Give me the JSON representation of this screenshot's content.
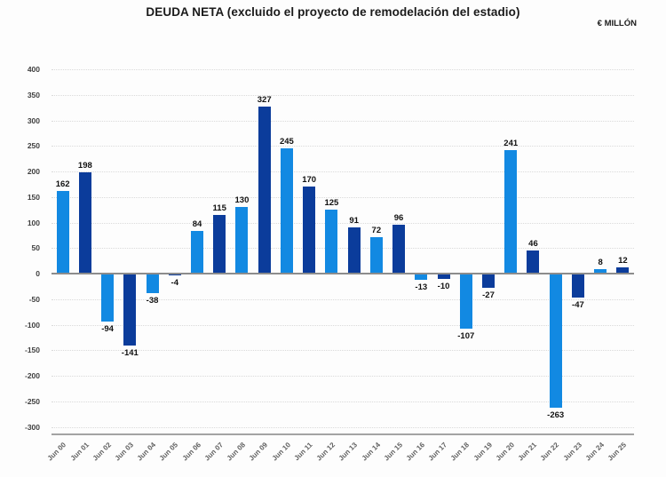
{
  "chart_data": {
    "type": "bar",
    "title": "DEUDA NETA (excluido el proyecto de remodelación del estadio)",
    "units": "€ MILLÓN",
    "categories": [
      "Jun 00",
      "Jun 01",
      "Jun 02",
      "Jun 03",
      "Jun 04",
      "Jun 05",
      "Jun 06",
      "Jun 07",
      "Jun 08",
      "Jun 09",
      "Jun 10",
      "Jun 11",
      "Jun 12",
      "Jun 13",
      "Jun 14",
      "Jun 15",
      "Jun 16",
      "Jun 17",
      "Jun 18",
      "Jun 19",
      "Jun 20",
      "Jun 21",
      "Jun 22",
      "Jun 23",
      "Jun 24",
      "Jun 25"
    ],
    "values": [
      162,
      198,
      -94,
      -141,
      -38,
      -4,
      84,
      115,
      130,
      327,
      245,
      170,
      125,
      91,
      72,
      96,
      -13,
      -10,
      -107,
      -27,
      241,
      46,
      -263,
      -47,
      8,
      12
    ],
    "bar_colors_alternating": [
      "#1289E2",
      "#0B3C9B"
    ],
    "value_labels": true,
    "xlabel": "",
    "ylabel": "",
    "ylim": [
      -300,
      400
    ],
    "yticks": [
      400,
      350,
      300,
      250,
      200,
      150,
      100,
      50,
      0,
      -50,
      -100,
      -150,
      -200,
      -250,
      -300
    ],
    "grid": "horizontal-dotted",
    "legend": "none"
  }
}
